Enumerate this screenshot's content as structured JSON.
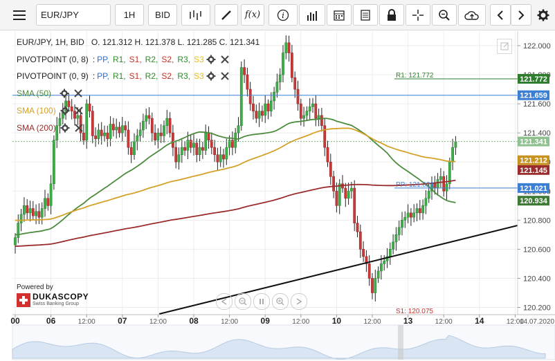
{
  "toolbar": {
    "menu_icon": "hamburger-menu-icon",
    "instrument": "EUR/JPY",
    "period": "1H",
    "side": "BID",
    "tools": [
      "candle-type-icon",
      "draw-icon",
      "formula-icon",
      "info-icon",
      "bar-chart-icon",
      "calendar-icon",
      "report-icon",
      "lock-icon",
      "crosshair-icon",
      "zoom-icon",
      "cloud-upload-icon",
      "prev-icon",
      "next-icon",
      "gear-icon"
    ],
    "fx_label": "f(x)"
  },
  "header": {
    "instrument_line": "EUR/JPY, 1H, BID",
    "ohlc": "O. 121.312 H. 121.378 L. 121.285 C. 121.341"
  },
  "indicators": {
    "pivot1": {
      "name": "PIVOTPOINT (0, 8)"
    },
    "pivot2": {
      "name": "PIVOTPOINT (0, 9)"
    },
    "pivot_levels": [
      {
        "label": "PP,",
        "color": "#2e6fd1"
      },
      {
        "label": "R1,",
        "color": "#2e8b2e"
      },
      {
        "label": "S1,",
        "color": "#c9302c"
      },
      {
        "label": "R2,",
        "color": "#2e8b2e"
      },
      {
        "label": "S2,",
        "color": "#c9302c"
      },
      {
        "label": "R3,",
        "color": "#2e8b2e"
      },
      {
        "label": "S3",
        "color": "#e8c31a"
      }
    ],
    "sma50": {
      "name": "SMA (50)",
      "color": "#4c8a3c"
    },
    "sma100": {
      "name": "SMA (100)",
      "color": "#d4a028"
    },
    "sma200": {
      "name": "SMA (200)",
      "color": "#9a2c2c"
    },
    "legend_colon": ":"
  },
  "powered": {
    "text": "Powered by",
    "brand": "DUKASCOPY",
    "sub": "Swiss Banking Group"
  },
  "chart_data": {
    "type": "candlestick",
    "ylim": [
      120.15,
      122.1
    ],
    "y_ticks": [
      122.0,
      121.8,
      121.6,
      121.4,
      121.2,
      121.0,
      120.8,
      120.6,
      120.4,
      120.2
    ],
    "y_tick_labels": [
      "122.000",
      "121.800",
      "121.600",
      "121.400",
      "121.200",
      "121.000",
      "120.800",
      "120.600",
      "120.400",
      "120.200"
    ],
    "x_labels": [
      {
        "t": 0,
        "text": "00"
      },
      {
        "t": 12,
        "text": "06"
      },
      {
        "t": 24,
        "text": "12:00"
      },
      {
        "t": 36,
        "text": "07"
      },
      {
        "t": 48,
        "text": "12:00"
      },
      {
        "t": 60,
        "text": "08"
      },
      {
        "t": 72,
        "text": "12:00"
      },
      {
        "t": 84,
        "text": "09"
      },
      {
        "t": 96,
        "text": "12:00"
      },
      {
        "t": 108,
        "text": "10"
      },
      {
        "t": 120,
        "text": "12:00"
      },
      {
        "t": 132,
        "text": "13"
      },
      {
        "t": 144,
        "text": "12:00"
      },
      {
        "t": 156,
        "text": "14"
      },
      {
        "t": 168,
        "text": "12:00"
      }
    ],
    "date_end_label": "14.07.2020",
    "price_tags": [
      {
        "value": 121.772,
        "label": "121.772",
        "color": "#2e7d2e"
      },
      {
        "value": 121.659,
        "label": "121.659",
        "color": "#3b7fd4"
      },
      {
        "value": 121.341,
        "label": "121.341",
        "color": "#8fc08f"
      },
      {
        "value": 121.212,
        "label": "121.212",
        "color": "#c7921e"
      },
      {
        "value": 121.145,
        "label": "121.145",
        "color": "#9a2c2c"
      },
      {
        "value": 121.021,
        "label": "121.021",
        "color": "#3b7fd4"
      },
      {
        "value": 120.934,
        "label": "120.934",
        "color": "#3d7a34"
      }
    ],
    "pivot_lines": [
      {
        "name": "R1",
        "value": 121.772,
        "label": "R1: 121.772",
        "color": "#2e7d2e"
      },
      {
        "name": "PP",
        "value": 121.021,
        "label": "PP: 121.021",
        "color": "#3b7fd4"
      },
      {
        "name": "S1",
        "value": 120.075,
        "label": "S1: 120.075",
        "color": "#c9302c"
      }
    ],
    "hline_blue": 121.659,
    "current_price": 121.341,
    "closes": [
      120.68,
      120.78,
      120.84,
      120.9,
      120.85,
      120.88,
      120.83,
      120.86,
      120.82,
      120.88,
      120.95,
      120.9,
      121.05,
      121.35,
      121.45,
      121.5,
      121.55,
      121.62,
      121.58,
      121.55,
      121.5,
      121.52,
      121.4,
      121.35,
      121.6,
      121.55,
      121.38,
      121.36,
      121.42,
      121.38,
      121.4,
      121.36,
      121.46,
      121.42,
      121.44,
      121.4,
      121.45,
      121.42,
      121.3,
      121.25,
      121.34,
      121.38,
      121.42,
      121.48,
      121.52,
      121.5,
      121.4,
      121.35,
      121.4,
      121.38,
      121.45,
      121.5,
      121.4,
      121.3,
      121.2,
      121.25,
      121.3,
      121.28,
      121.35,
      121.3,
      121.33,
      121.25,
      121.3,
      121.28,
      121.4,
      121.35,
      121.3,
      121.25,
      121.2,
      121.25,
      121.22,
      121.3,
      121.35,
      121.3,
      121.4,
      121.45,
      121.85,
      121.8,
      121.7,
      121.6,
      121.55,
      121.5,
      121.55,
      121.52,
      121.6,
      121.55,
      121.62,
      121.68,
      121.75,
      121.8,
      121.95,
      122.02,
      121.95,
      121.78,
      121.7,
      121.6,
      121.5,
      121.52,
      121.55,
      121.58,
      121.6,
      121.5,
      121.52,
      121.45,
      121.3,
      121.2,
      121.1,
      121.0,
      120.9,
      121.05,
      121.02,
      120.95,
      121.0,
      121.02,
      120.78,
      120.72,
      120.6,
      120.55,
      120.5,
      120.4,
      120.3,
      120.4,
      120.45,
      120.5,
      120.52,
      120.55,
      120.6,
      120.65,
      120.7,
      120.75,
      120.8,
      120.82,
      120.85,
      120.82,
      120.85,
      120.88,
      120.85,
      120.9,
      120.95,
      121.0,
      121.05,
      121.02,
      121.08,
      121.1,
      121.0,
      121.05,
      121.2,
      121.3,
      121.34
    ]
  }
}
